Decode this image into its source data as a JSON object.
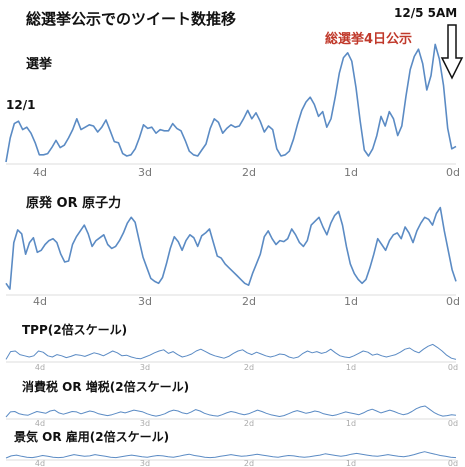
{
  "title": "総選挙公示でのツイート数推移",
  "start_date_label": "12/1",
  "end_date_label": "12/5 5AM",
  "annotation": "総選挙4日公示",
  "colors": {
    "line": "#5b8bc4",
    "annotation": "#c0392b"
  },
  "arrow_icon": "down-arrow-outline",
  "chart_data": [
    {
      "type": "line",
      "title": "選挙",
      "x_ticks": [
        "4d",
        "3d",
        "2d",
        "1d",
        "0d"
      ],
      "ylim": [
        0,
        100
      ],
      "values": [
        0,
        20,
        32,
        34,
        27,
        29,
        24,
        16,
        6,
        6,
        7,
        12,
        18,
        12,
        14,
        20,
        27,
        36,
        27,
        29,
        31,
        30,
        25,
        29,
        35,
        26,
        17,
        16,
        7,
        5,
        6,
        11,
        20,
        31,
        28,
        29,
        24,
        27,
        26,
        26,
        32,
        28,
        26,
        18,
        9,
        6,
        5,
        10,
        15,
        28,
        36,
        33,
        24,
        28,
        31,
        29,
        30,
        36,
        43,
        36,
        41,
        34,
        25,
        30,
        27,
        11,
        5,
        6,
        9,
        19,
        32,
        43,
        50,
        54,
        48,
        38,
        42,
        29,
        36,
        54,
        74,
        87,
        91,
        84,
        62,
        34,
        10,
        5,
        11,
        22,
        38,
        30,
        42,
        36,
        22,
        30,
        55,
        77,
        88,
        94,
        82,
        60,
        72,
        98,
        86,
        64,
        28,
        11,
        13
      ]
    },
    {
      "type": "line",
      "title": "原発 OR 原子力",
      "x_ticks": [
        "4d",
        "3d",
        "2d",
        "1d",
        "0d"
      ],
      "ylim": [
        0,
        100
      ],
      "values": [
        10,
        4,
        52,
        65,
        61,
        40,
        52,
        57,
        42,
        44,
        50,
        54,
        56,
        52,
        40,
        32,
        33,
        50,
        58,
        64,
        70,
        61,
        48,
        54,
        57,
        60,
        50,
        46,
        48,
        54,
        62,
        72,
        78,
        73,
        55,
        37,
        26,
        15,
        12,
        10,
        16,
        30,
        46,
        58,
        53,
        44,
        54,
        60,
        57,
        48,
        59,
        62,
        66,
        52,
        38,
        36,
        30,
        26,
        22,
        18,
        14,
        10,
        8,
        20,
        30,
        40,
        58,
        64,
        56,
        50,
        54,
        53,
        56,
        66,
        60,
        52,
        48,
        54,
        70,
        74,
        78,
        68,
        60,
        72,
        80,
        84,
        70,
        48,
        30,
        20,
        14,
        10,
        14,
        26,
        40,
        56,
        50,
        44,
        54,
        60,
        62,
        56,
        68,
        62,
        52,
        64,
        72,
        78,
        76,
        70,
        82,
        88,
        64,
        44,
        24,
        12
      ]
    },
    {
      "type": "line",
      "title": "TPP(2倍スケール)",
      "x_ticks": [
        "4d",
        "3d",
        "2d",
        "1d",
        "0d"
      ],
      "ylim": [
        0,
        100
      ],
      "values": [
        2,
        28,
        30,
        18,
        14,
        10,
        14,
        30,
        26,
        14,
        10,
        18,
        14,
        8,
        12,
        18,
        16,
        12,
        18,
        24,
        20,
        14,
        22,
        30,
        24,
        14,
        16,
        10,
        6,
        4,
        10,
        16,
        24,
        30,
        34,
        22,
        28,
        18,
        10,
        14,
        20,
        30,
        36,
        28,
        20,
        14,
        10,
        6,
        12,
        22,
        30,
        34,
        24,
        18,
        26,
        20,
        14,
        10,
        14,
        20,
        18,
        10,
        6,
        10,
        22,
        30,
        24,
        28,
        22,
        26,
        36,
        24,
        14,
        10,
        8,
        14,
        22,
        30,
        26,
        16,
        20,
        14,
        10,
        14,
        18,
        26,
        36,
        40,
        30,
        24,
        36,
        46,
        52,
        42,
        30,
        16,
        6,
        2
      ]
    },
    {
      "type": "line",
      "title": "消費税 OR 増税(2倍スケール)",
      "x_ticks": [
        "4d",
        "3d",
        "2d",
        "1d",
        "0d"
      ],
      "ylim": [
        0,
        100
      ],
      "values": [
        0,
        22,
        24,
        14,
        10,
        8,
        16,
        24,
        20,
        16,
        26,
        30,
        18,
        12,
        18,
        24,
        22,
        14,
        20,
        26,
        22,
        14,
        10,
        6,
        10,
        16,
        22,
        18,
        24,
        30,
        26,
        22,
        14,
        8,
        4,
        8,
        14,
        24,
        30,
        26,
        18,
        14,
        22,
        32,
        26,
        16,
        10,
        6,
        4,
        10,
        18,
        24,
        20,
        14,
        10,
        14,
        22,
        30,
        24,
        16,
        10,
        6,
        2,
        6,
        14,
        22,
        28,
        22,
        16,
        20,
        26,
        22,
        14,
        10,
        6,
        10,
        16,
        22,
        18,
        14,
        10,
        18,
        28,
        34,
        26,
        18,
        24,
        30,
        24,
        16,
        10,
        14,
        24,
        36,
        44,
        48,
        34,
        20,
        10,
        4,
        6,
        10,
        8
      ]
    },
    {
      "type": "line",
      "title": "景気 OR 雇用(2倍スケール)",
      "x_ticks": [
        "4d",
        "3d",
        "2d",
        "1d",
        "0d"
      ],
      "ylim": [
        0,
        100
      ],
      "values": [
        0,
        10,
        14,
        8,
        4,
        2,
        6,
        12,
        8,
        4,
        2,
        4,
        10,
        16,
        12,
        8,
        10,
        16,
        12,
        8,
        4,
        2,
        6,
        10,
        14,
        10,
        6,
        4,
        8,
        12,
        10,
        6,
        4,
        8,
        14,
        18,
        12,
        8,
        4,
        2,
        4,
        8,
        12,
        16,
        12,
        8,
        10,
        14,
        18,
        14,
        10,
        6,
        4,
        8,
        12,
        10,
        6,
        4,
        6,
        10,
        14,
        20,
        16,
        12,
        8,
        12,
        18,
        22,
        18,
        14,
        10,
        8,
        12,
        16,
        12,
        8,
        6,
        10,
        16,
        24,
        30,
        24,
        18,
        12,
        8,
        4,
        2
      ]
    }
  ]
}
